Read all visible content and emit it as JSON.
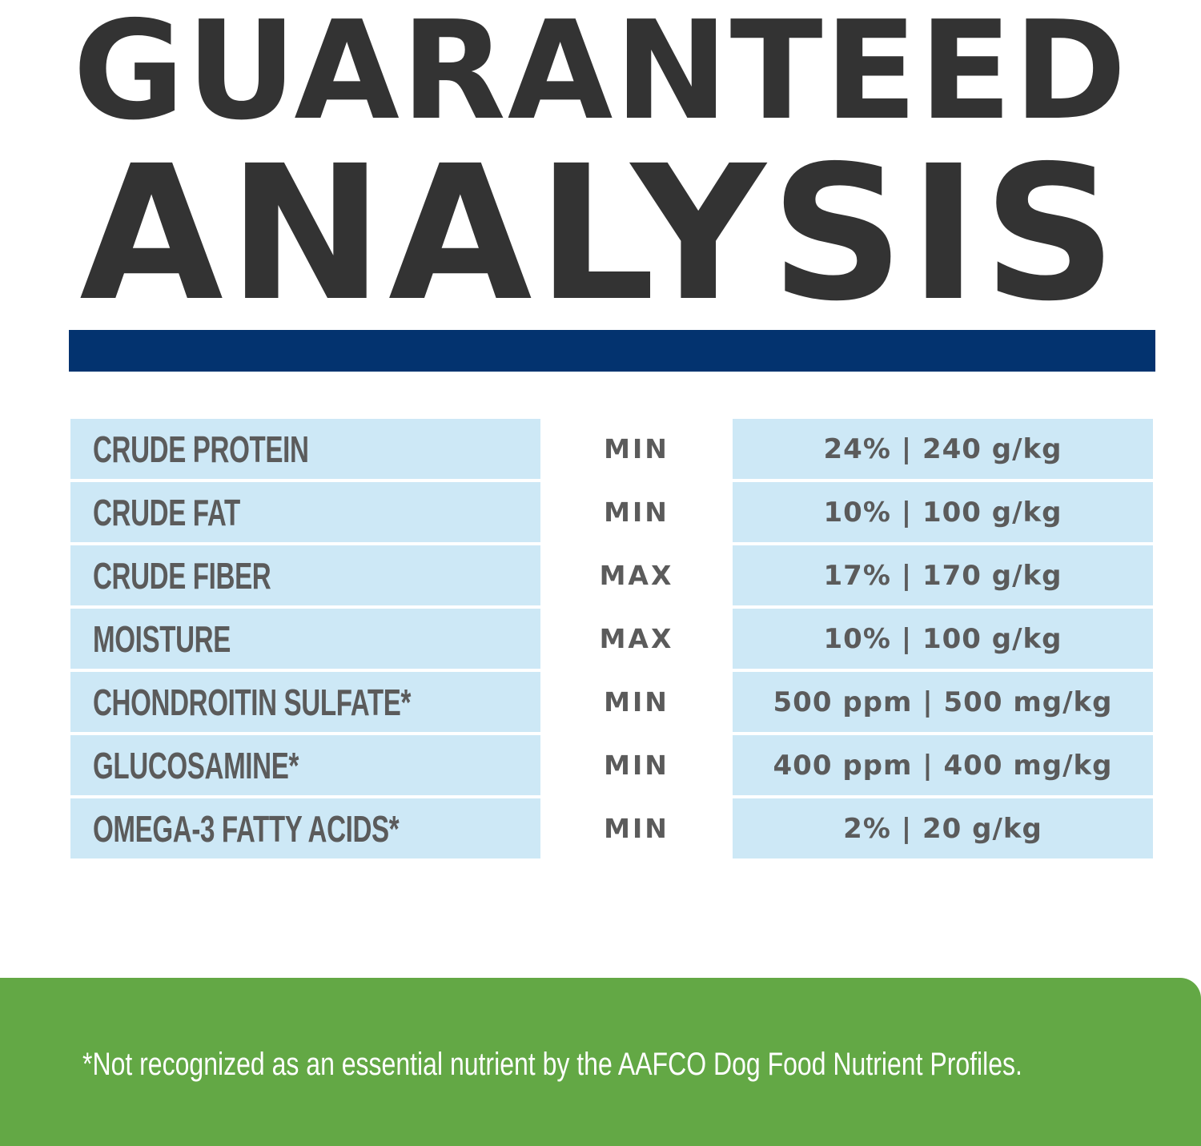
{
  "title": {
    "line1": "GUARANTEED",
    "line2": "ANALYSIS"
  },
  "colors": {
    "title_text": "#333333",
    "rule": "#03336f",
    "cell_background": "#cde8f6",
    "cell_text": "#5b5b5b",
    "footer_background": "#63a845",
    "footer_text": "#ffffff"
  },
  "analysis": {
    "rows": [
      {
        "nutrient": "CRUDE PROTEIN",
        "type": "MIN",
        "value": "24% | 240 g/kg"
      },
      {
        "nutrient": "CRUDE FAT",
        "type": "MIN",
        "value": "10% | 100 g/kg"
      },
      {
        "nutrient": "CRUDE FIBER",
        "type": "MAX",
        "value": "17% | 170 g/kg"
      },
      {
        "nutrient": "MOISTURE",
        "type": "MAX",
        "value": "10% | 100 g/kg"
      },
      {
        "nutrient": "CHONDROITIN SULFATE*",
        "type": "MIN",
        "value": "500 ppm | 500 mg/kg"
      },
      {
        "nutrient": "GLUCOSAMINE*",
        "type": "MIN",
        "value": "400 ppm | 400 mg/kg"
      },
      {
        "nutrient": "OMEGA-3 FATTY ACIDS*",
        "type": "MIN",
        "value": "2% | 20 g/kg"
      }
    ]
  },
  "footer": {
    "note": "*Not recognized as an essential nutrient by the AAFCO Dog Food Nutrient Profiles."
  }
}
